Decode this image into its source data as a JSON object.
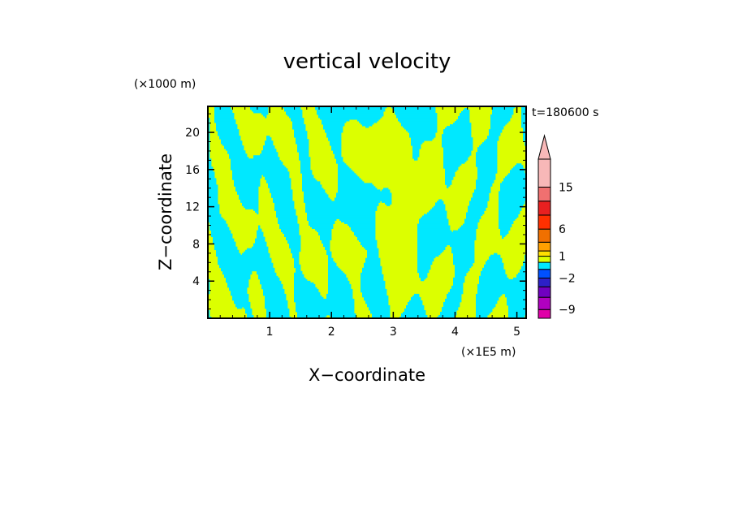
{
  "chart_data": {
    "type": "heatmap",
    "title": "vertical velocity",
    "xlabel": "X−coordinate",
    "ylabel": "Z−coordinate",
    "x_unit": "(×1E5 m)",
    "y_unit": "(×1000 m)",
    "time_label": "t=180600 s",
    "xlim": [
      0,
      5.15
    ],
    "ylim": [
      0,
      22.8
    ],
    "x_ticks": [
      1,
      2,
      3,
      4,
      5
    ],
    "y_ticks": [
      4,
      8,
      12,
      16,
      20
    ],
    "field_colors": {
      "negative": "#00e8ff",
      "positive": "#dcff00"
    },
    "colorbar": {
      "levels": [
        -12,
        -9,
        -6,
        -4,
        -2,
        -1,
        0,
        1,
        2,
        4,
        6,
        9,
        12,
        15,
        30
      ],
      "colors": [
        "#e000a8",
        "#b000c0",
        "#7000c0",
        "#2c20c8",
        "#0050ff",
        "#00e8ff",
        "#dcff00",
        "#ffe000",
        "#ffa000",
        "#f07000",
        "#ff3000",
        "#e82020",
        "#f07070",
        "#f8b8b8"
      ],
      "tick_labels": [
        "15",
        "6",
        "1",
        "−2",
        "−9"
      ],
      "tick_values": [
        15,
        6,
        1,
        -2,
        -9
      ],
      "extend": "max"
    }
  }
}
